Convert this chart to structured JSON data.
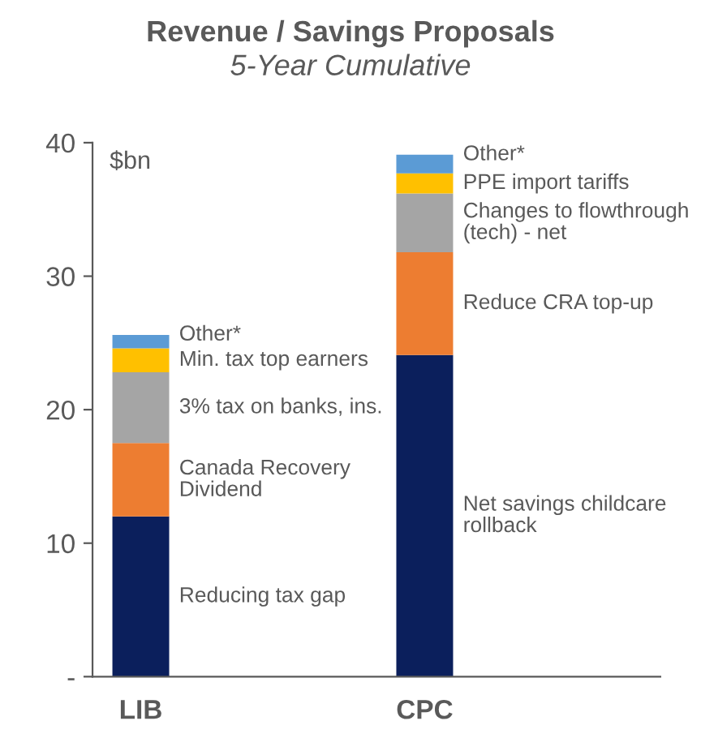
{
  "chart_data": {
    "type": "bar",
    "title": "Revenue / Savings Proposals",
    "subtitle": "5-Year Cumulative",
    "ylabel": "$bn",
    "stacked": true,
    "categories": [
      "LIB",
      "CPC"
    ],
    "series": [
      {
        "color": "#0b1f5c",
        "values": [
          12.0,
          24.1
        ]
      },
      {
        "color": "#ed7d31",
        "values": [
          5.5,
          7.7
        ]
      },
      {
        "color": "#a5a5a5",
        "values": [
          5.3,
          4.4
        ]
      },
      {
        "color": "#ffc000",
        "values": [
          1.8,
          1.5
        ]
      },
      {
        "color": "#5b9bd5",
        "values": [
          1.0,
          1.4
        ]
      }
    ],
    "ylim": [
      0,
      40
    ],
    "yticks": [
      {
        "value": 0,
        "label": "-"
      },
      10,
      20,
      30,
      40
    ],
    "grid": false,
    "legend": false,
    "annotations": [
      "Reducing tax gap",
      "Canada Recovery\nDividend",
      "3% tax on banks, ins.",
      "Min. tax top earners",
      "Other*",
      "Net savings childcare\nrollback",
      "Reduce CRA top-up",
      "Changes to flowthrough\n(tech) - net",
      "PPE import tariffs",
      "Other*"
    ]
  }
}
